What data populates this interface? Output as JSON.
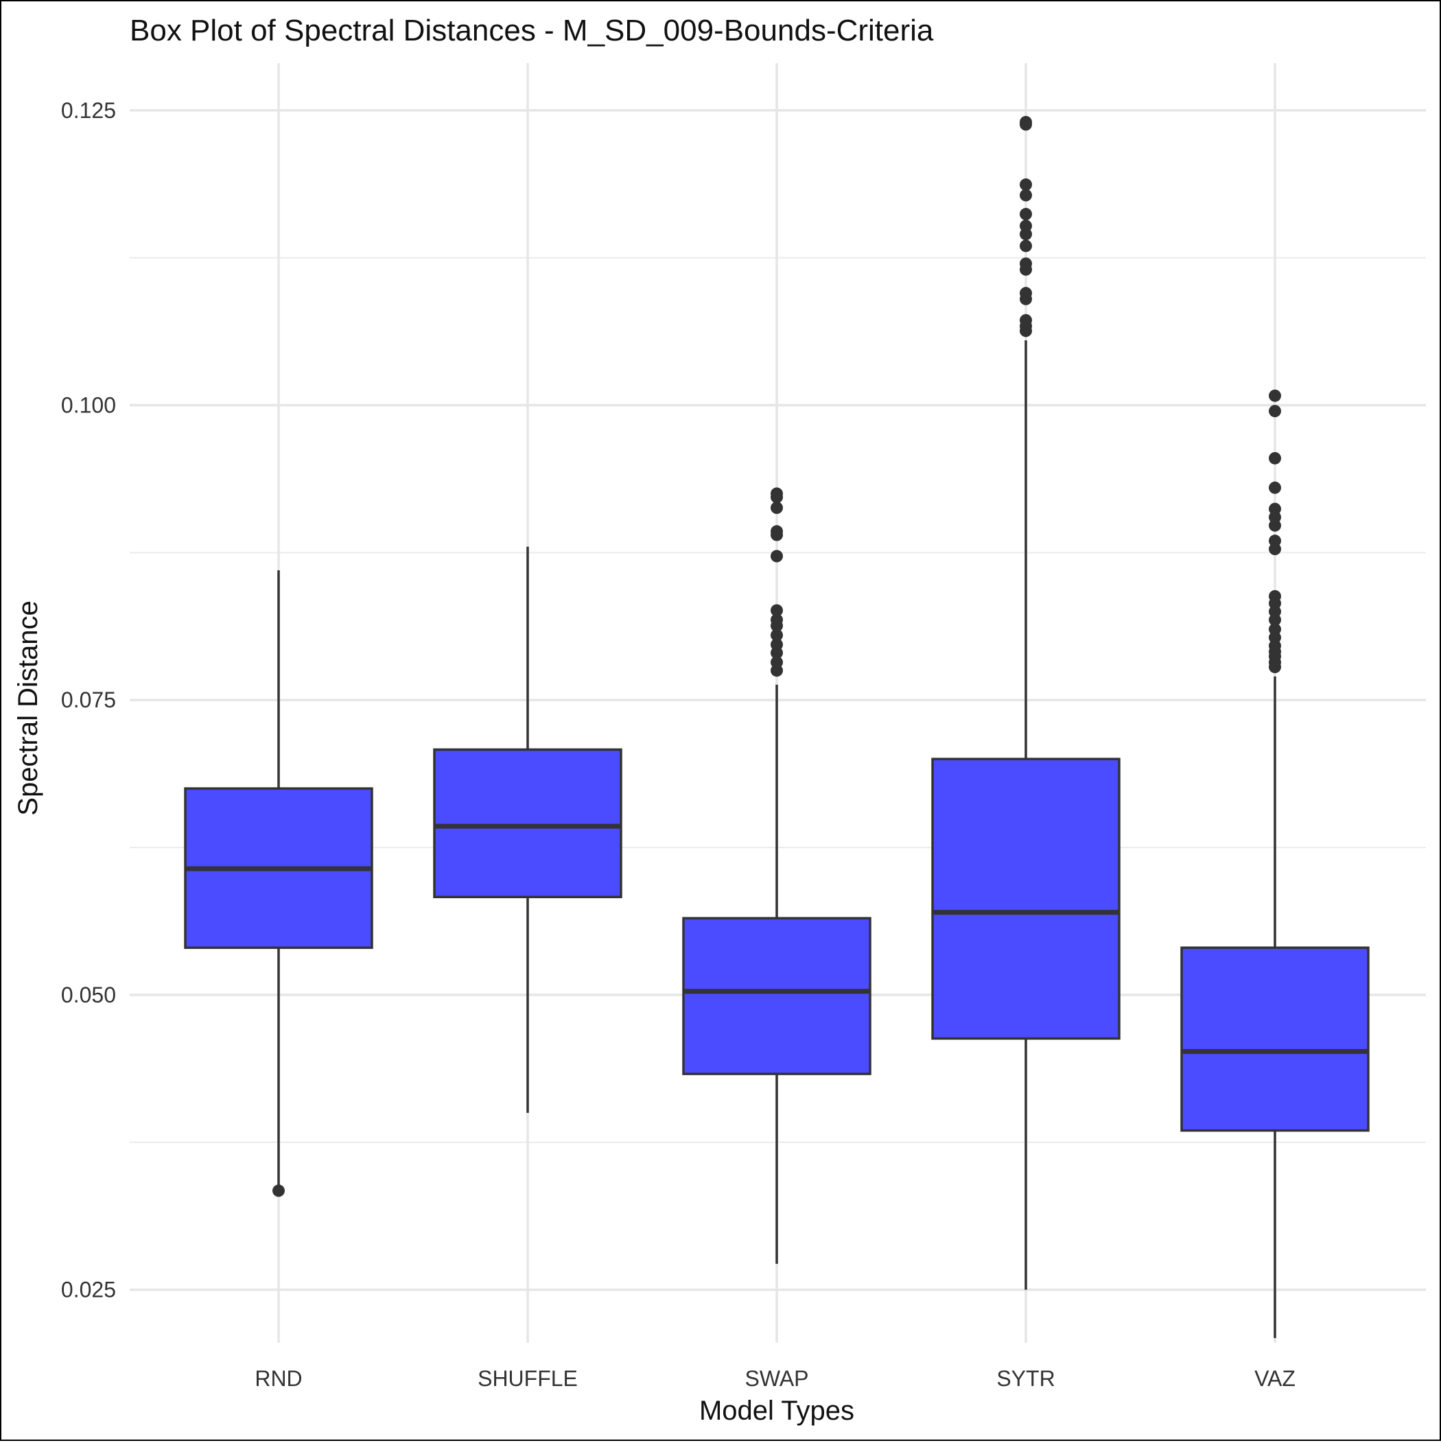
{
  "chart_data": {
    "type": "box",
    "title": "Box Plot of Spectral Distances -  M_SD_009-Bounds-Criteria",
    "xlabel": "Model Types",
    "ylabel": "Spectral Distance",
    "ylim": [
      0.0205,
      0.129
    ],
    "yticks": [
      0.025,
      0.05,
      0.075,
      0.1,
      0.125
    ],
    "ytick_labels": [
      "0.025",
      "0.050",
      "0.075",
      "0.100",
      "0.125"
    ],
    "grid": true,
    "fill_color": "#4b4bff",
    "stroke_color": "#333333",
    "categories": [
      "RND",
      "SHUFFLE",
      "SWAP",
      "SYTR",
      "VAZ"
    ],
    "boxes": [
      {
        "label": "RND",
        "whisker_low": 0.0335,
        "q1": 0.054,
        "median": 0.0607,
        "q3": 0.0675,
        "whisker_high": 0.086,
        "outliers": [
          0.0334
        ]
      },
      {
        "label": "SHUFFLE",
        "whisker_low": 0.04,
        "q1": 0.0583,
        "median": 0.0643,
        "q3": 0.0708,
        "whisker_high": 0.088,
        "outliers": []
      },
      {
        "label": "SWAP",
        "whisker_low": 0.0272,
        "q1": 0.0433,
        "median": 0.0503,
        "q3": 0.0565,
        "whisker_high": 0.0763,
        "outliers": [
          0.0775,
          0.0782,
          0.079,
          0.0797,
          0.0805,
          0.0813,
          0.0818,
          0.0826,
          0.0872,
          0.089,
          0.0893,
          0.0913,
          0.0922,
          0.0925
        ]
      },
      {
        "label": "SYTR",
        "whisker_low": 0.025,
        "q1": 0.0463,
        "median": 0.057,
        "q3": 0.07,
        "whisker_high": 0.1055,
        "outliers": [
          0.1063,
          0.1067,
          0.1072,
          0.109,
          0.1095,
          0.1115,
          0.112,
          0.1135,
          0.1145,
          0.1152,
          0.1162,
          0.1178,
          0.1187,
          0.1238,
          0.124
        ]
      },
      {
        "label": "VAZ",
        "whisker_low": 0.0209,
        "q1": 0.0385,
        "median": 0.0452,
        "q3": 0.054,
        "whisker_high": 0.077,
        "outliers": [
          0.0778,
          0.0782,
          0.0787,
          0.0791,
          0.0796,
          0.0803,
          0.081,
          0.0818,
          0.0825,
          0.0832,
          0.0838,
          0.0878,
          0.0885,
          0.0898,
          0.0905,
          0.0912,
          0.093,
          0.0955,
          0.0995,
          0.1008
        ]
      }
    ]
  }
}
